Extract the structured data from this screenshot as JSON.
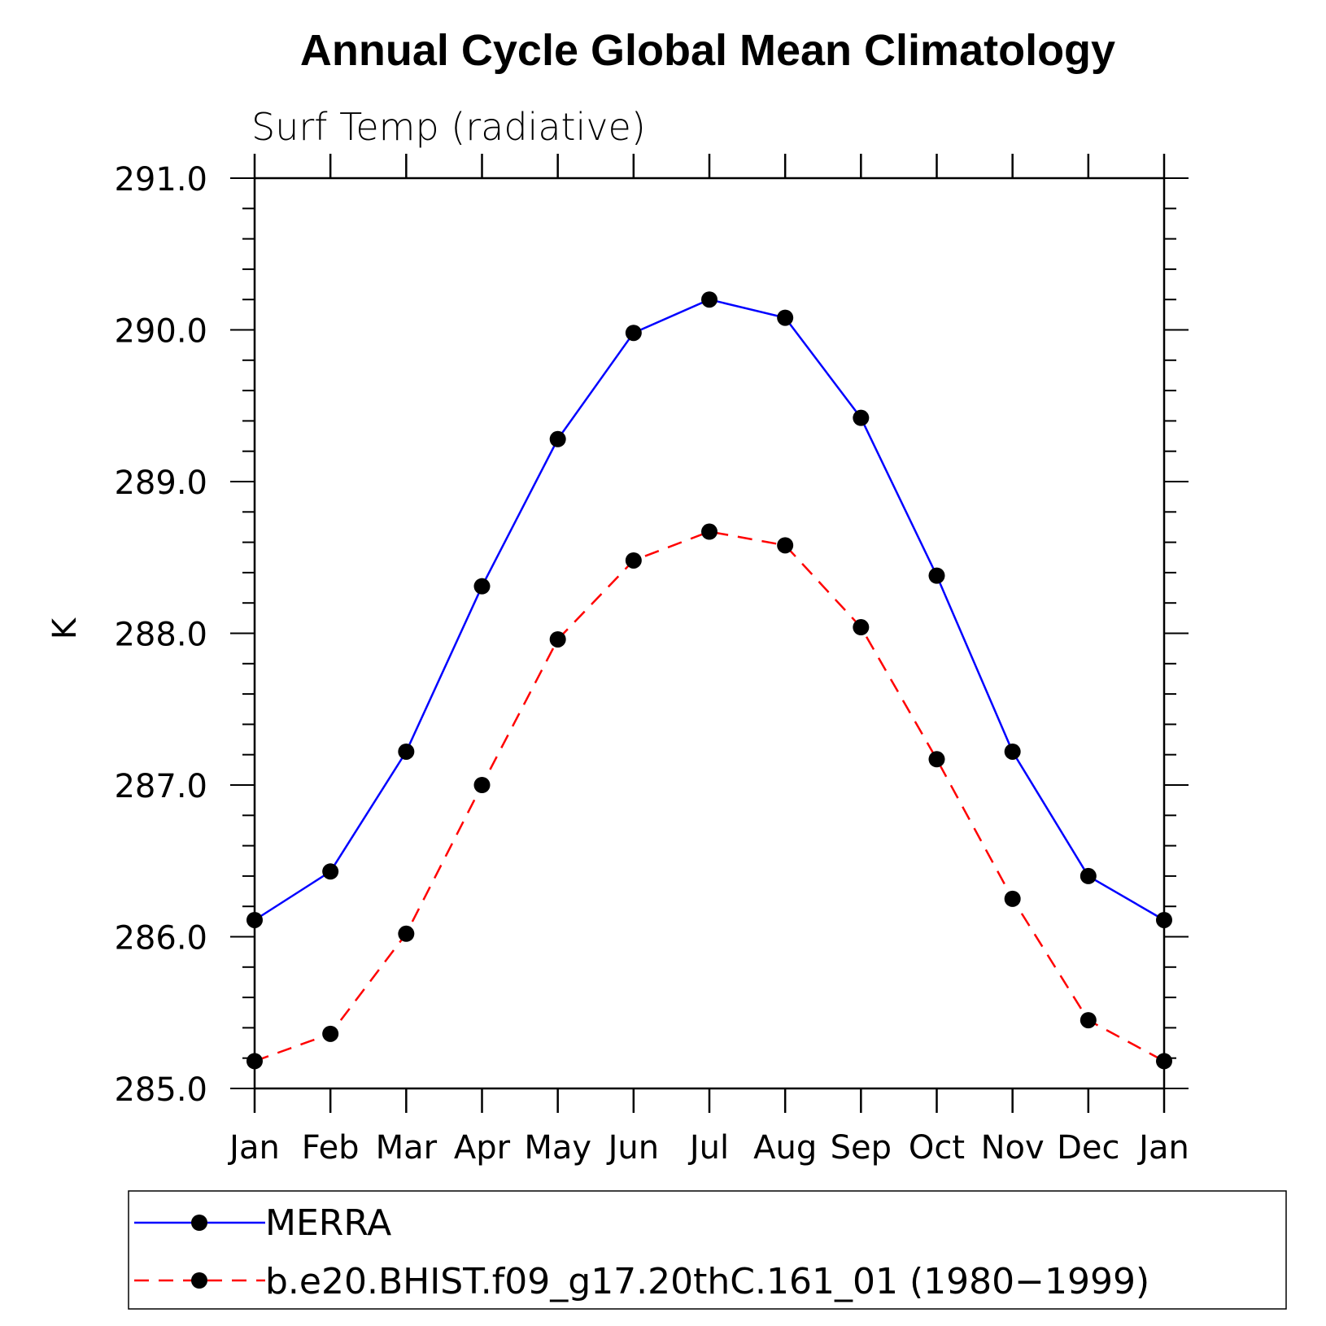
{
  "chart_data": {
    "type": "line",
    "title": "Annual Cycle Global Mean Climatology",
    "subtitle": "Surf Temp (radiative)",
    "xlabel": "",
    "ylabel": "K",
    "categories": [
      "Jan",
      "Feb",
      "Mar",
      "Apr",
      "May",
      "Jun",
      "Jul",
      "Aug",
      "Sep",
      "Oct",
      "Nov",
      "Dec",
      "Jan"
    ],
    "ylim": [
      285.0,
      291.0
    ],
    "yticks": [
      "285.0",
      "286.0",
      "287.0",
      "288.0",
      "289.0",
      "290.0",
      "291.0"
    ],
    "y_minor_step": 0.2,
    "grid": false,
    "legend_position": "bottom",
    "series": [
      {
        "name": "MERRA",
        "color": "#0000ff",
        "dashed": false,
        "marker": "circle",
        "values": [
          286.11,
          286.43,
          287.22,
          288.31,
          289.28,
          289.98,
          290.2,
          290.08,
          289.42,
          288.38,
          287.22,
          286.4,
          286.11
        ]
      },
      {
        "name": "b.e20.BHIST.f09_g17.20thC.161_01 (1980−1999)",
        "color": "#ff0000",
        "dashed": true,
        "marker": "circle",
        "values": [
          285.18,
          285.36,
          286.02,
          287.0,
          287.96,
          288.48,
          288.67,
          288.58,
          288.04,
          287.17,
          286.25,
          285.45,
          285.18
        ]
      }
    ]
  }
}
